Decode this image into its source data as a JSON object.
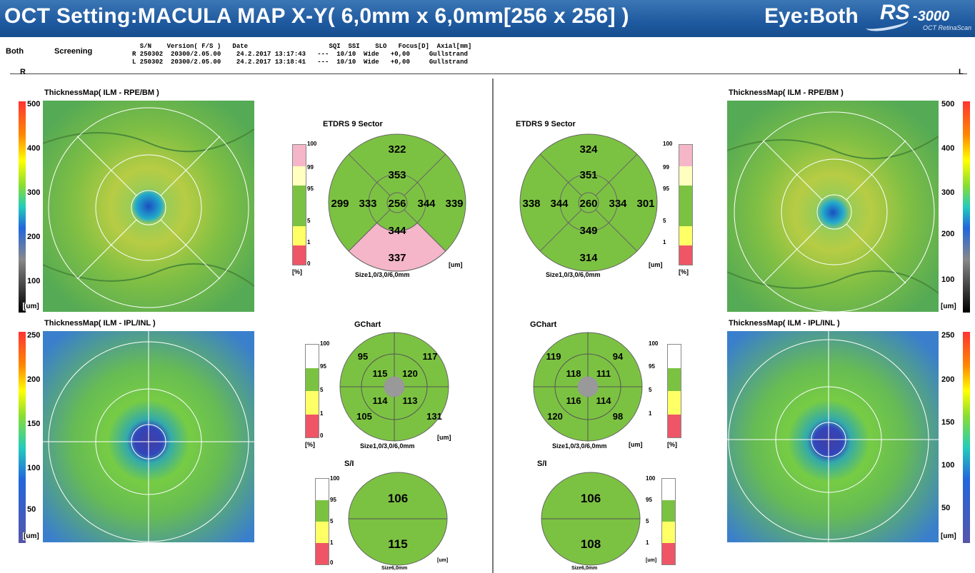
{
  "header": {
    "title": "OCT Setting:MACULA MAP X-Y( 6,0mm x 6,0mm[256 x 256] )",
    "eye": "Eye:Both",
    "logo_main": "RS",
    "logo_model": "-3000",
    "logo_sub": "OCT RetinaScan"
  },
  "info": {
    "both": "Both",
    "screening": "Screening",
    "header_line": "  S/N    Version( F/S )   Date                     SQI  SSI    SLO   Focus[D]  Axial[mm]",
    "row_r": "R 250302  20300/2.05.00    24.2.2017 13:17:43   ---  10/10  Wide   +0,00     Gullstrand",
    "row_l": "L 250302  20300/2.05.00    24.2.2017 13:18:41   ---  10/10  Wide   +0,00     Gullstrand"
  },
  "sides": {
    "right": "R",
    "left": "L"
  },
  "maps": {
    "thickness_title": "ThicknessMap( ILM - RPE/BM )",
    "ipl_title": "ThicknessMap( ILM - IPL/INL )",
    "scale1": [
      "500",
      "400",
      "300",
      "200",
      "100"
    ],
    "scale2": [
      "250",
      "200",
      "150",
      "100",
      "50"
    ],
    "unit": "[um]"
  },
  "etdrs": {
    "title": "ETDRS 9 Sector",
    "size": "Size1,0/3,0/6,0mm",
    "unit": "[um]",
    "right": {
      "center": "256",
      "inner_sup": "353",
      "inner_inf": "344",
      "inner_nas": "344",
      "inner_temp": "333",
      "outer_sup": "322",
      "outer_inf": "337",
      "outer_nas": "339",
      "outer_temp": "299"
    },
    "left": {
      "center": "260",
      "inner_sup": "351",
      "inner_inf": "349",
      "inner_nas": "334",
      "inner_temp": "344",
      "outer_sup": "324",
      "outer_inf": "314",
      "outer_nas": "301",
      "outer_temp": "338"
    }
  },
  "gchart": {
    "title": "GChart",
    "size": "Size1,0/3,0/6,0mm",
    "unit": "[um]",
    "right": {
      "o_tl": "95",
      "o_tr": "117",
      "o_bl": "105",
      "o_br": "131",
      "i_tl": "115",
      "i_tr": "120",
      "i_bl": "114",
      "i_br": "113"
    },
    "left": {
      "o_tl": "119",
      "o_tr": "94",
      "o_bl": "120",
      "o_br": "98",
      "i_tl": "118",
      "i_tr": "111",
      "i_bl": "116",
      "i_br": "114"
    }
  },
  "si": {
    "title": "S/I",
    "size": "Size6,0mm",
    "unit": "[um]",
    "right": {
      "sup": "106",
      "inf": "115"
    },
    "left": {
      "sup": "106",
      "inf": "108"
    }
  },
  "pct": {
    "ticks_etdrs": [
      "100",
      "99",
      "95",
      "5",
      "1",
      "0"
    ],
    "ticks_g": [
      "100",
      "95",
      "5",
      "1",
      "0"
    ],
    "unit": "[%]"
  },
  "colors": {
    "green": "#7cc242",
    "pink": "#f4b6c8",
    "header": "#2563a8",
    "yellow": "#ffff66",
    "red": "#ee5566",
    "lightyellow": "#ffffc0"
  }
}
